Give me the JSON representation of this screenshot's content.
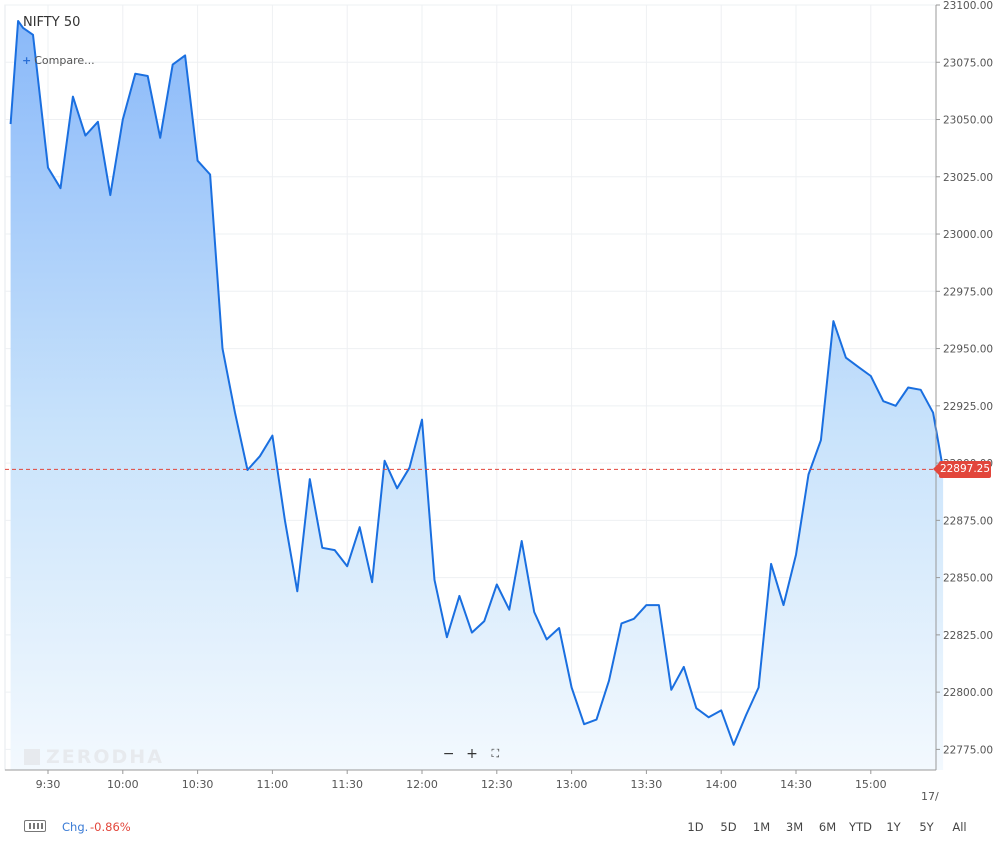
{
  "chart_data": {
    "type": "area",
    "title": "NIFTY 50",
    "x_ticks": [
      "9:30",
      "10:00",
      "10:30",
      "11:00",
      "11:30",
      "12:00",
      "12:30",
      "13:00",
      "13:30",
      "14:00",
      "14:30",
      "15:00"
    ],
    "y_ticks": [
      "23100.00",
      "23075.00",
      "23050.00",
      "23025.00",
      "23000.00",
      "22975.00",
      "22950.00",
      "22925.00",
      "22900.00",
      "22875.00",
      "22850.00",
      "22825.00",
      "22800.00",
      "22775.00"
    ],
    "ylim": [
      22766,
      23100
    ],
    "current_price": 22897.25,
    "series": [
      {
        "x": [
          "9:15",
          "9:18",
          "9:20",
          "9:24",
          "9:30",
          "9:35",
          "9:40",
          "9:45",
          "9:50",
          "9:55",
          "10:00",
          "10:05",
          "10:10",
          "10:15",
          "10:20",
          "10:25",
          "10:30",
          "10:35",
          "10:40",
          "10:45",
          "10:50",
          "10:55",
          "11:00",
          "11:05",
          "11:10",
          "11:15",
          "11:20",
          "11:25",
          "11:30",
          "11:35",
          "11:40",
          "11:45",
          "11:50",
          "11:55",
          "12:00",
          "12:05",
          "12:10",
          "12:15",
          "12:20",
          "12:25",
          "12:30",
          "12:35",
          "12:40",
          "12:45",
          "12:50",
          "12:55",
          "13:00",
          "13:05",
          "13:10",
          "13:15",
          "13:20",
          "13:25",
          "13:30",
          "13:35",
          "13:40",
          "13:45",
          "13:50",
          "13:55",
          "14:00",
          "14:05",
          "14:10",
          "14:15",
          "14:20",
          "14:25",
          "14:30",
          "14:35",
          "14:40",
          "14:45",
          "14:50",
          "14:55",
          "15:00",
          "15:05",
          "15:10",
          "15:15",
          "15:20",
          "15:25",
          "15:29"
        ],
        "values": [
          23048,
          23093,
          23090,
          23087,
          23029,
          23020,
          23060,
          23043,
          23049,
          23017,
          23050,
          23070,
          23069,
          23042,
          23074,
          23078,
          23032,
          23026,
          22950,
          22922,
          22897,
          22903,
          22912,
          22875,
          22844,
          22893,
          22863,
          22862,
          22855,
          22872,
          22848,
          22901,
          22889,
          22898,
          22919,
          22849,
          22824,
          22842,
          22826,
          22831,
          22847,
          22836,
          22866,
          22835,
          22823,
          22828,
          22802,
          22786,
          22788,
          22805,
          22830,
          22832,
          22838,
          22838,
          22801,
          22811,
          22793,
          22789,
          22792,
          22777,
          22790,
          22802,
          22856,
          22838,
          22860,
          22895,
          22910,
          22962,
          22946,
          22942,
          22938,
          22927,
          22925,
          22933,
          22932,
          22922,
          22897.25
        ]
      }
    ],
    "grid": true,
    "legend": "none"
  },
  "ui": {
    "title": "NIFTY 50",
    "compare_label": "Compare...",
    "compare_plus": "+",
    "watermark": "ZERODHA",
    "zoom_out": "−",
    "zoom_in": "+",
    "zoom_fit": "⛶",
    "current_price_label": "22897.25",
    "x_edge_label": "17/",
    "footer": {
      "chg_label": "Chg.",
      "chg_value": "-0.86%",
      "ranges": [
        "1D",
        "5D",
        "1M",
        "3M",
        "6M",
        "YTD",
        "1Y",
        "5Y",
        "All"
      ]
    }
  }
}
